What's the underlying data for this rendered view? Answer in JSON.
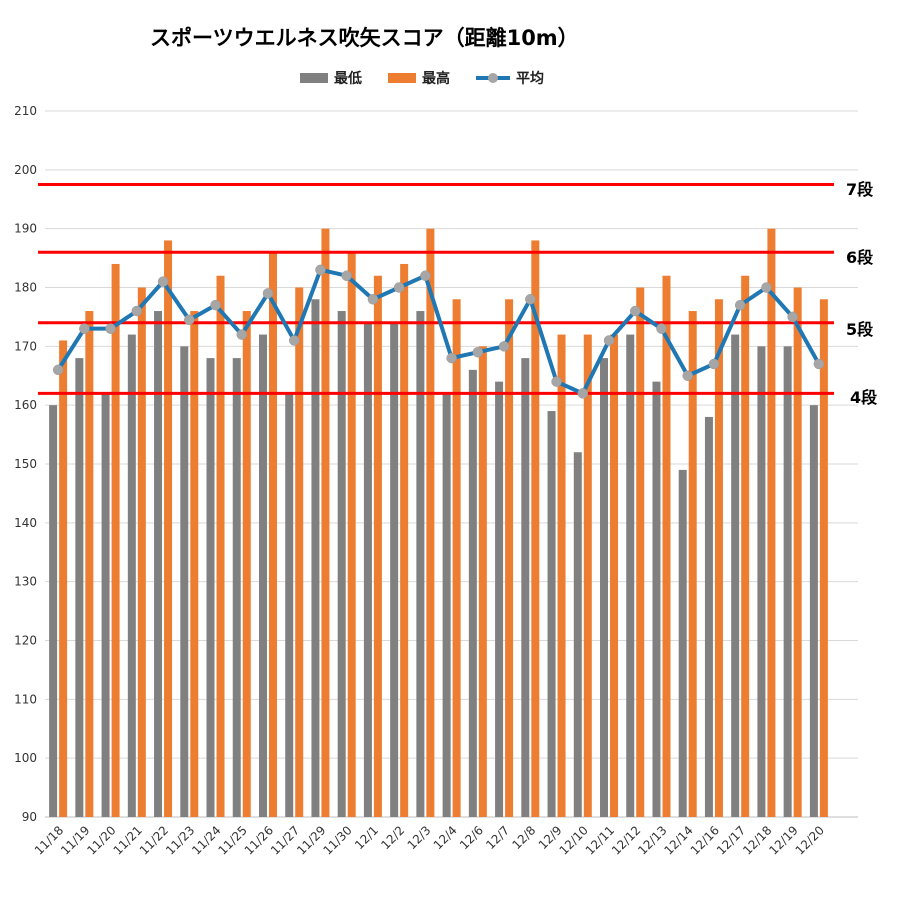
{
  "chart_data": {
    "type": "bar",
    "title": "スポーツウエルネス吹矢スコア（距離10m）",
    "categories": [
      "11/18",
      "11/19",
      "11/20",
      "11/21",
      "11/22",
      "11/23",
      "11/24",
      "11/25",
      "11/26",
      "11/27",
      "11/29",
      "11/30",
      "12/1",
      "12/2",
      "12/3",
      "12/4",
      "12/6",
      "12/7",
      "12/8",
      "12/9",
      "12/10",
      "12/11",
      "12/12",
      "12/13",
      "12/14",
      "12/16",
      "12/17",
      "12/18",
      "12/19",
      "12/20"
    ],
    "series": [
      {
        "name": "最低",
        "type": "bar",
        "color": "#808080",
        "values": [
          160,
          168,
          162,
          172,
          176,
          170,
          168,
          168,
          172,
          162,
          178,
          176,
          174,
          174,
          176,
          162,
          166,
          164,
          168,
          159,
          152,
          168,
          172,
          164,
          149,
          158,
          172,
          170,
          170,
          160
        ]
      },
      {
        "name": "最高",
        "type": "bar",
        "color": "#ED7D31",
        "values": [
          171,
          176,
          184,
          180,
          188,
          176,
          182,
          176,
          186,
          180,
          190,
          186,
          182,
          184,
          190,
          178,
          170,
          178,
          188,
          172,
          172,
          172,
          180,
          182,
          176,
          178,
          182,
          190,
          180,
          178
        ]
      },
      {
        "name": "平均",
        "type": "line",
        "color": "#1F77B4",
        "marker_color": "#A6A6A6",
        "values": [
          166,
          173,
          173,
          176,
          181,
          174.5,
          177,
          172,
          179,
          171,
          183,
          182,
          178,
          180,
          182,
          168,
          169,
          170,
          178,
          164,
          162,
          171,
          176,
          173,
          165,
          167,
          177,
          180,
          175,
          167
        ]
      }
    ],
    "ylim": [
      90,
      210
    ],
    "yticks": [
      "90",
      "100",
      "110",
      "120",
      "130",
      "140",
      "150",
      "160",
      "170",
      "180",
      "190",
      "200",
      "210"
    ],
    "reference_lines": [
      {
        "label": "7段",
        "value": 197.5,
        "color": "#FF0000"
      },
      {
        "label": "6段",
        "value": 186,
        "color": "#FF0000"
      },
      {
        "label": "5段",
        "value": 174,
        "color": "#FF0000"
      },
      {
        "label": "4段",
        "value": 162,
        "color": "#FF0000"
      }
    ],
    "grid": true,
    "legend_position": "top"
  }
}
